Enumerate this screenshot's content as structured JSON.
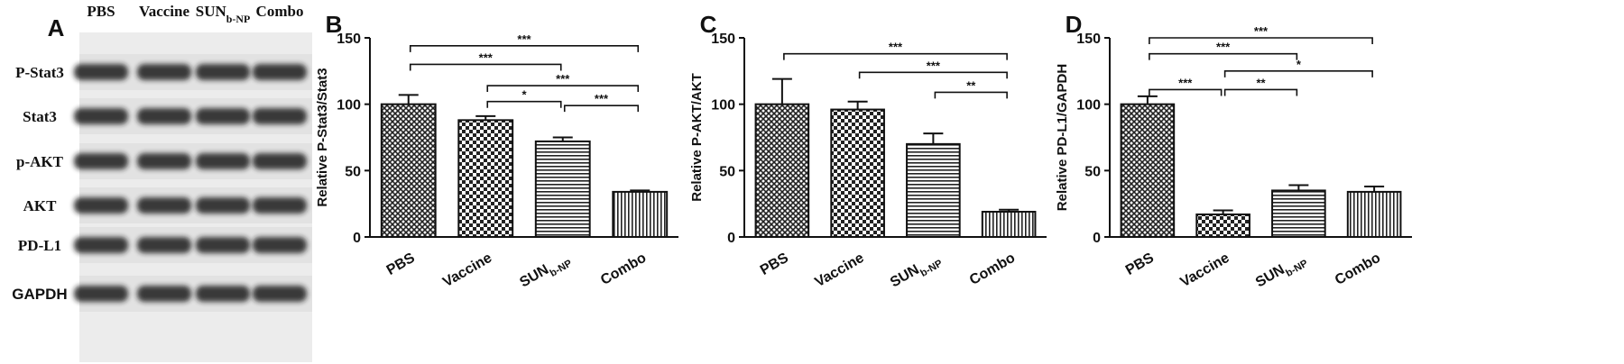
{
  "blot": {
    "label": "A",
    "lanes": [
      "PBS",
      "Vaccine",
      "SUNb-NP",
      "Combo"
    ],
    "rows": [
      "P-Stat3",
      "Stat3",
      "p-AKT",
      "AKT",
      "PD-L1",
      "GAPDH"
    ]
  },
  "chart_data": [
    {
      "type": "bar",
      "panel_label": "B",
      "y_label": "Relative P-Stat3/Stat3",
      "categories": [
        "PBS",
        "Vaccine",
        "SUNb-NP",
        "Combo"
      ],
      "values": [
        100,
        88,
        72,
        34
      ],
      "errors": [
        7,
        3,
        3,
        1
      ],
      "patterns": [
        "crosshatch",
        "checker",
        "hlines",
        "vlines"
      ],
      "ylim": [
        0,
        150
      ],
      "yticks": [
        0,
        50,
        100,
        150
      ],
      "comparisons": [
        {
          "from": 0,
          "to": 3,
          "y": 144,
          "label": "***"
        },
        {
          "from": 0,
          "to": 2,
          "y": 130,
          "label": "***"
        },
        {
          "from": 1,
          "to": 3,
          "y": 114,
          "label": "***"
        },
        {
          "from": 1,
          "to": 2,
          "y": 102,
          "label": "*"
        },
        {
          "from": 2,
          "to": 3,
          "y": 99,
          "label": "***"
        }
      ]
    },
    {
      "type": "bar",
      "panel_label": "C",
      "y_label": "Relative P-AKT/AKT",
      "categories": [
        "PBS",
        "Vaccine",
        "SUNb-NP",
        "Combo"
      ],
      "values": [
        100,
        96,
        70,
        19
      ],
      "errors": [
        19,
        6,
        8,
        1.5
      ],
      "patterns": [
        "crosshatch",
        "checker",
        "hlines",
        "vlines"
      ],
      "ylim": [
        0,
        150
      ],
      "yticks": [
        0,
        50,
        100,
        150
      ],
      "comparisons": [
        {
          "from": 0,
          "to": 3,
          "y": 138,
          "label": "***"
        },
        {
          "from": 1,
          "to": 3,
          "y": 124,
          "label": "***"
        },
        {
          "from": 2,
          "to": 3,
          "y": 109,
          "label": "**"
        }
      ]
    },
    {
      "type": "bar",
      "panel_label": "D",
      "y_label": "Relative PD-L1/GAPDH",
      "categories": [
        "PBS",
        "Vaccine",
        "SUNb-NP",
        "Combo"
      ],
      "values": [
        100,
        17,
        35,
        34
      ],
      "errors": [
        6,
        3,
        4,
        4
      ],
      "patterns": [
        "crosshatch",
        "checker",
        "hlines",
        "vlines"
      ],
      "ylim": [
        0,
        150
      ],
      "yticks": [
        0,
        50,
        100,
        150
      ],
      "comparisons": [
        {
          "from": 0,
          "to": 3,
          "y": 150,
          "label": "***"
        },
        {
          "from": 0,
          "to": 2,
          "y": 138,
          "label": "***"
        },
        {
          "from": 1,
          "to": 3,
          "y": 125,
          "label": "*"
        },
        {
          "from": 0,
          "to": 1,
          "y": 111,
          "label": "***"
        },
        {
          "from": 1,
          "to": 2,
          "y": 111,
          "label": "**"
        }
      ]
    }
  ]
}
